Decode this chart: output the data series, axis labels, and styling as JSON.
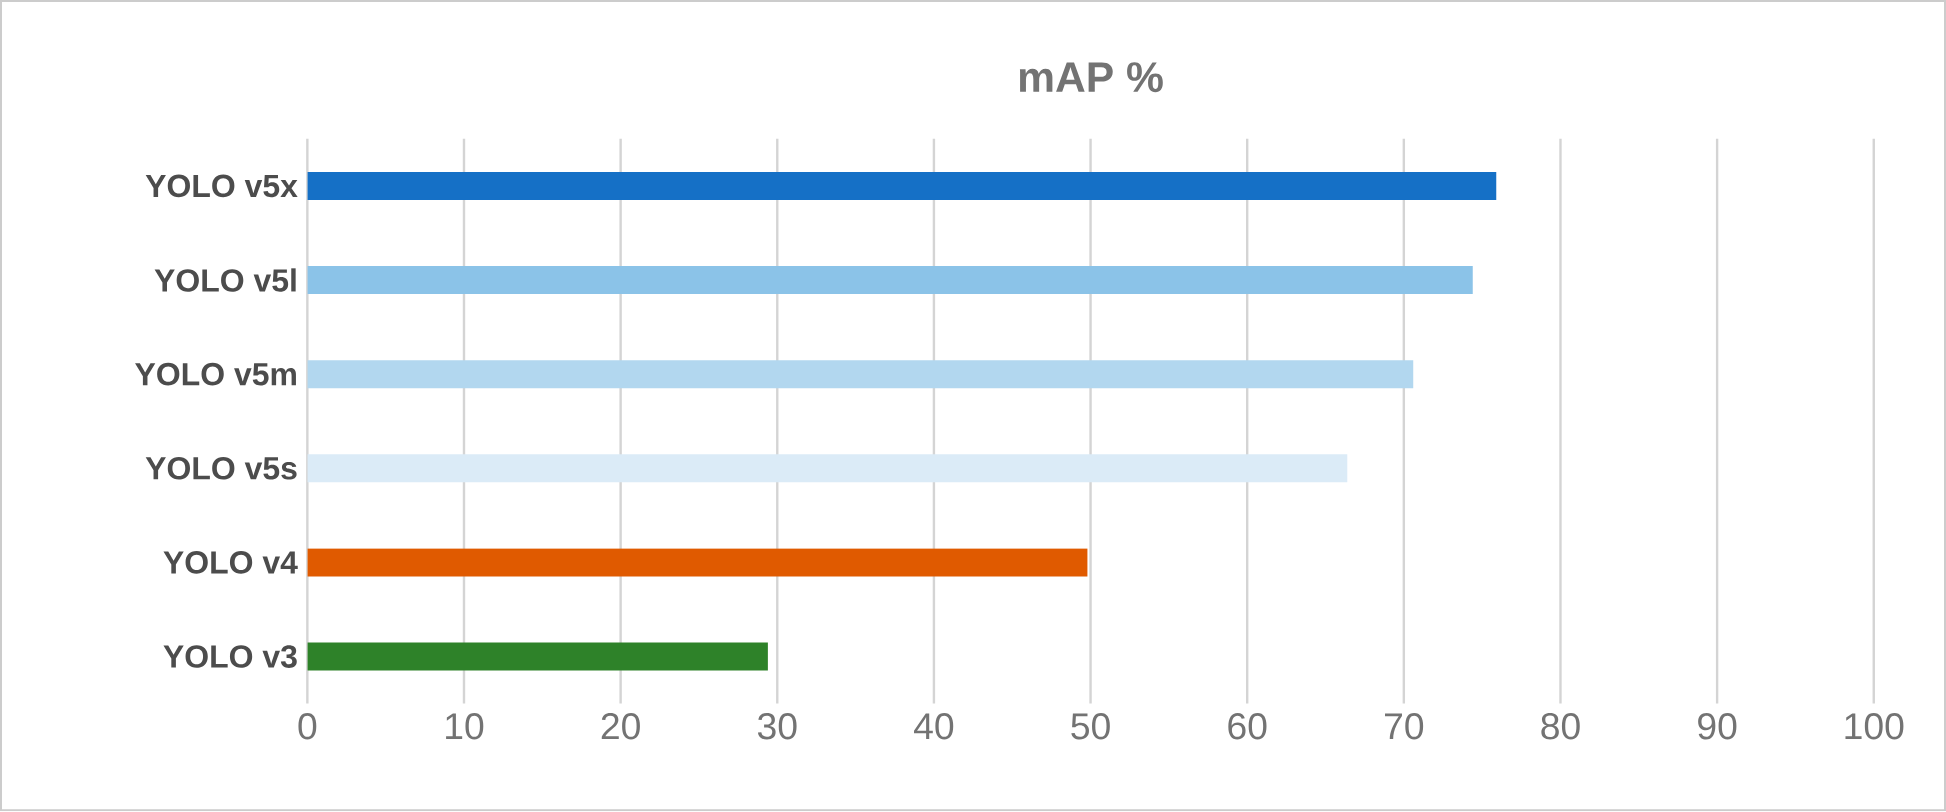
{
  "chart_data": {
    "type": "bar",
    "orientation": "horizontal",
    "title": "mAP %",
    "categories": [
      "YOLO v5x",
      "YOLO v5l",
      "YOLO v5m",
      "YOLO v5s",
      "YOLO v4",
      "YOLO v3"
    ],
    "values": [
      75.9,
      74.4,
      70.6,
      66.4,
      49.8,
      29.4
    ],
    "colors": [
      "#1570c6",
      "#8bc3e8",
      "#b2d7ef",
      "#dbebf7",
      "#e05a00",
      "#2e8229"
    ],
    "xlim": [
      0,
      100
    ],
    "xticks": [
      0,
      10,
      20,
      30,
      40,
      50,
      60,
      70,
      80,
      90,
      100
    ],
    "grid": "x"
  }
}
